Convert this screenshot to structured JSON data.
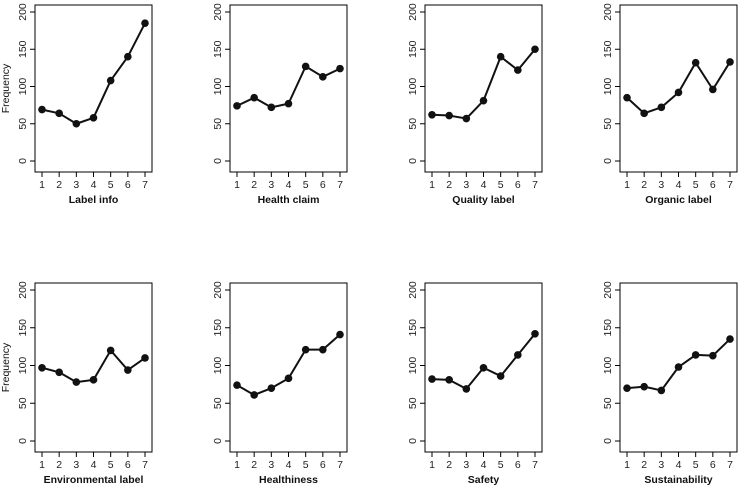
{
  "chart_data": [
    {
      "type": "line",
      "xlabel": "Label info",
      "ylabel": "Frequency",
      "x": [
        1,
        2,
        3,
        4,
        5,
        6,
        7
      ],
      "values": [
        69,
        64,
        50,
        58,
        108,
        140,
        185
      ],
      "ylim": [
        0,
        200
      ],
      "yticks": [
        0,
        50,
        100,
        150,
        200
      ],
      "grid": false
    },
    {
      "type": "line",
      "xlabel": "Health claim",
      "ylabel": "",
      "x": [
        1,
        2,
        3,
        4,
        5,
        6,
        7
      ],
      "values": [
        74,
        85,
        72,
        77,
        127,
        113,
        124
      ],
      "ylim": [
        0,
        200
      ],
      "yticks": [
        0,
        50,
        100,
        150,
        200
      ],
      "grid": false
    },
    {
      "type": "line",
      "xlabel": "Quality label",
      "ylabel": "",
      "x": [
        1,
        2,
        3,
        4,
        5,
        6,
        7
      ],
      "values": [
        62,
        61,
        57,
        81,
        140,
        122,
        150
      ],
      "ylim": [
        0,
        200
      ],
      "yticks": [
        0,
        50,
        100,
        150,
        200
      ],
      "grid": false
    },
    {
      "type": "line",
      "xlabel": "Organic label",
      "ylabel": "",
      "x": [
        1,
        2,
        3,
        4,
        5,
        6,
        7
      ],
      "values": [
        85,
        64,
        72,
        92,
        132,
        96,
        133
      ],
      "ylim": [
        0,
        200
      ],
      "yticks": [
        0,
        50,
        100,
        150,
        200
      ],
      "grid": false
    },
    {
      "type": "line",
      "xlabel": "Environmental label",
      "ylabel": "Frequency",
      "x": [
        1,
        2,
        3,
        4,
        5,
        6,
        7
      ],
      "values": [
        97,
        91,
        78,
        81,
        120,
        94,
        110
      ],
      "ylim": [
        0,
        200
      ],
      "yticks": [
        0,
        50,
        100,
        150,
        200
      ],
      "grid": false
    },
    {
      "type": "line",
      "xlabel": "Healthiness",
      "ylabel": "",
      "x": [
        1,
        2,
        3,
        4,
        5,
        6,
        7
      ],
      "values": [
        74,
        61,
        70,
        83,
        121,
        121,
        141
      ],
      "ylim": [
        0,
        200
      ],
      "yticks": [
        0,
        50,
        100,
        150,
        200
      ],
      "grid": false
    },
    {
      "type": "line",
      "xlabel": "Safety",
      "ylabel": "",
      "x": [
        1,
        2,
        3,
        4,
        5,
        6,
        7
      ],
      "values": [
        82,
        81,
        69,
        97,
        86,
        114,
        142
      ],
      "ylim": [
        0,
        200
      ],
      "yticks": [
        0,
        50,
        100,
        150,
        200
      ],
      "grid": false
    },
    {
      "type": "line",
      "xlabel": "Sustainability",
      "ylabel": "",
      "x": [
        1,
        2,
        3,
        4,
        5,
        6,
        7
      ],
      "values": [
        70,
        72,
        67,
        98,
        114,
        113,
        135
      ],
      "ylim": [
        0,
        200
      ],
      "yticks": [
        0,
        50,
        100,
        150,
        200
      ],
      "grid": false
    }
  ],
  "style": {
    "line_color": "#111111",
    "point_color": "#111111",
    "axis_color": "#000000"
  }
}
